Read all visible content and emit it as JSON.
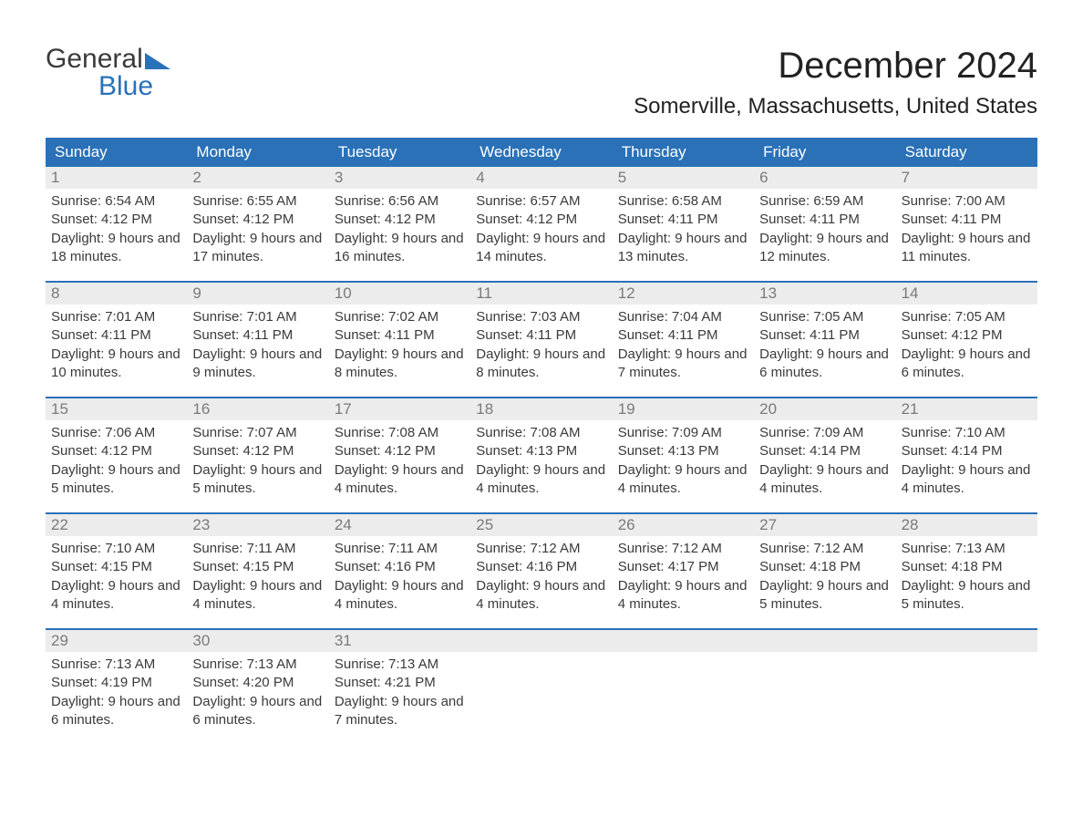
{
  "brand": {
    "part1": "General",
    "part2": "Blue"
  },
  "colors": {
    "accent": "#2a71b8",
    "header_text": "#ffffff",
    "daynum_bg": "#ececec",
    "daynum_color": "#7a7a7a",
    "body_text": "#3a3a3a",
    "title_text": "#222222",
    "bg": "#ffffff"
  },
  "title": "December 2024",
  "location": "Somerville, Massachusetts, United States",
  "day_names": [
    "Sunday",
    "Monday",
    "Tuesday",
    "Wednesday",
    "Thursday",
    "Friday",
    "Saturday"
  ],
  "weeks": [
    [
      {
        "n": "1",
        "sunrise": "Sunrise: 6:54 AM",
        "sunset": "Sunset: 4:12 PM",
        "daylight": "Daylight: 9 hours and 18 minutes."
      },
      {
        "n": "2",
        "sunrise": "Sunrise: 6:55 AM",
        "sunset": "Sunset: 4:12 PM",
        "daylight": "Daylight: 9 hours and 17 minutes."
      },
      {
        "n": "3",
        "sunrise": "Sunrise: 6:56 AM",
        "sunset": "Sunset: 4:12 PM",
        "daylight": "Daylight: 9 hours and 16 minutes."
      },
      {
        "n": "4",
        "sunrise": "Sunrise: 6:57 AM",
        "sunset": "Sunset: 4:12 PM",
        "daylight": "Daylight: 9 hours and 14 minutes."
      },
      {
        "n": "5",
        "sunrise": "Sunrise: 6:58 AM",
        "sunset": "Sunset: 4:11 PM",
        "daylight": "Daylight: 9 hours and 13 minutes."
      },
      {
        "n": "6",
        "sunrise": "Sunrise: 6:59 AM",
        "sunset": "Sunset: 4:11 PM",
        "daylight": "Daylight: 9 hours and 12 minutes."
      },
      {
        "n": "7",
        "sunrise": "Sunrise: 7:00 AM",
        "sunset": "Sunset: 4:11 PM",
        "daylight": "Daylight: 9 hours and 11 minutes."
      }
    ],
    [
      {
        "n": "8",
        "sunrise": "Sunrise: 7:01 AM",
        "sunset": "Sunset: 4:11 PM",
        "daylight": "Daylight: 9 hours and 10 minutes."
      },
      {
        "n": "9",
        "sunrise": "Sunrise: 7:01 AM",
        "sunset": "Sunset: 4:11 PM",
        "daylight": "Daylight: 9 hours and 9 minutes."
      },
      {
        "n": "10",
        "sunrise": "Sunrise: 7:02 AM",
        "sunset": "Sunset: 4:11 PM",
        "daylight": "Daylight: 9 hours and 8 minutes."
      },
      {
        "n": "11",
        "sunrise": "Sunrise: 7:03 AM",
        "sunset": "Sunset: 4:11 PM",
        "daylight": "Daylight: 9 hours and 8 minutes."
      },
      {
        "n": "12",
        "sunrise": "Sunrise: 7:04 AM",
        "sunset": "Sunset: 4:11 PM",
        "daylight": "Daylight: 9 hours and 7 minutes."
      },
      {
        "n": "13",
        "sunrise": "Sunrise: 7:05 AM",
        "sunset": "Sunset: 4:11 PM",
        "daylight": "Daylight: 9 hours and 6 minutes."
      },
      {
        "n": "14",
        "sunrise": "Sunrise: 7:05 AM",
        "sunset": "Sunset: 4:12 PM",
        "daylight": "Daylight: 9 hours and 6 minutes."
      }
    ],
    [
      {
        "n": "15",
        "sunrise": "Sunrise: 7:06 AM",
        "sunset": "Sunset: 4:12 PM",
        "daylight": "Daylight: 9 hours and 5 minutes."
      },
      {
        "n": "16",
        "sunrise": "Sunrise: 7:07 AM",
        "sunset": "Sunset: 4:12 PM",
        "daylight": "Daylight: 9 hours and 5 minutes."
      },
      {
        "n": "17",
        "sunrise": "Sunrise: 7:08 AM",
        "sunset": "Sunset: 4:12 PM",
        "daylight": "Daylight: 9 hours and 4 minutes."
      },
      {
        "n": "18",
        "sunrise": "Sunrise: 7:08 AM",
        "sunset": "Sunset: 4:13 PM",
        "daylight": "Daylight: 9 hours and 4 minutes."
      },
      {
        "n": "19",
        "sunrise": "Sunrise: 7:09 AM",
        "sunset": "Sunset: 4:13 PM",
        "daylight": "Daylight: 9 hours and 4 minutes."
      },
      {
        "n": "20",
        "sunrise": "Sunrise: 7:09 AM",
        "sunset": "Sunset: 4:14 PM",
        "daylight": "Daylight: 9 hours and 4 minutes."
      },
      {
        "n": "21",
        "sunrise": "Sunrise: 7:10 AM",
        "sunset": "Sunset: 4:14 PM",
        "daylight": "Daylight: 9 hours and 4 minutes."
      }
    ],
    [
      {
        "n": "22",
        "sunrise": "Sunrise: 7:10 AM",
        "sunset": "Sunset: 4:15 PM",
        "daylight": "Daylight: 9 hours and 4 minutes."
      },
      {
        "n": "23",
        "sunrise": "Sunrise: 7:11 AM",
        "sunset": "Sunset: 4:15 PM",
        "daylight": "Daylight: 9 hours and 4 minutes."
      },
      {
        "n": "24",
        "sunrise": "Sunrise: 7:11 AM",
        "sunset": "Sunset: 4:16 PM",
        "daylight": "Daylight: 9 hours and 4 minutes."
      },
      {
        "n": "25",
        "sunrise": "Sunrise: 7:12 AM",
        "sunset": "Sunset: 4:16 PM",
        "daylight": "Daylight: 9 hours and 4 minutes."
      },
      {
        "n": "26",
        "sunrise": "Sunrise: 7:12 AM",
        "sunset": "Sunset: 4:17 PM",
        "daylight": "Daylight: 9 hours and 4 minutes."
      },
      {
        "n": "27",
        "sunrise": "Sunrise: 7:12 AM",
        "sunset": "Sunset: 4:18 PM",
        "daylight": "Daylight: 9 hours and 5 minutes."
      },
      {
        "n": "28",
        "sunrise": "Sunrise: 7:13 AM",
        "sunset": "Sunset: 4:18 PM",
        "daylight": "Daylight: 9 hours and 5 minutes."
      }
    ],
    [
      {
        "n": "29",
        "sunrise": "Sunrise: 7:13 AM",
        "sunset": "Sunset: 4:19 PM",
        "daylight": "Daylight: 9 hours and 6 minutes."
      },
      {
        "n": "30",
        "sunrise": "Sunrise: 7:13 AM",
        "sunset": "Sunset: 4:20 PM",
        "daylight": "Daylight: 9 hours and 6 minutes."
      },
      {
        "n": "31",
        "sunrise": "Sunrise: 7:13 AM",
        "sunset": "Sunset: 4:21 PM",
        "daylight": "Daylight: 9 hours and 7 minutes."
      },
      null,
      null,
      null,
      null
    ]
  ]
}
